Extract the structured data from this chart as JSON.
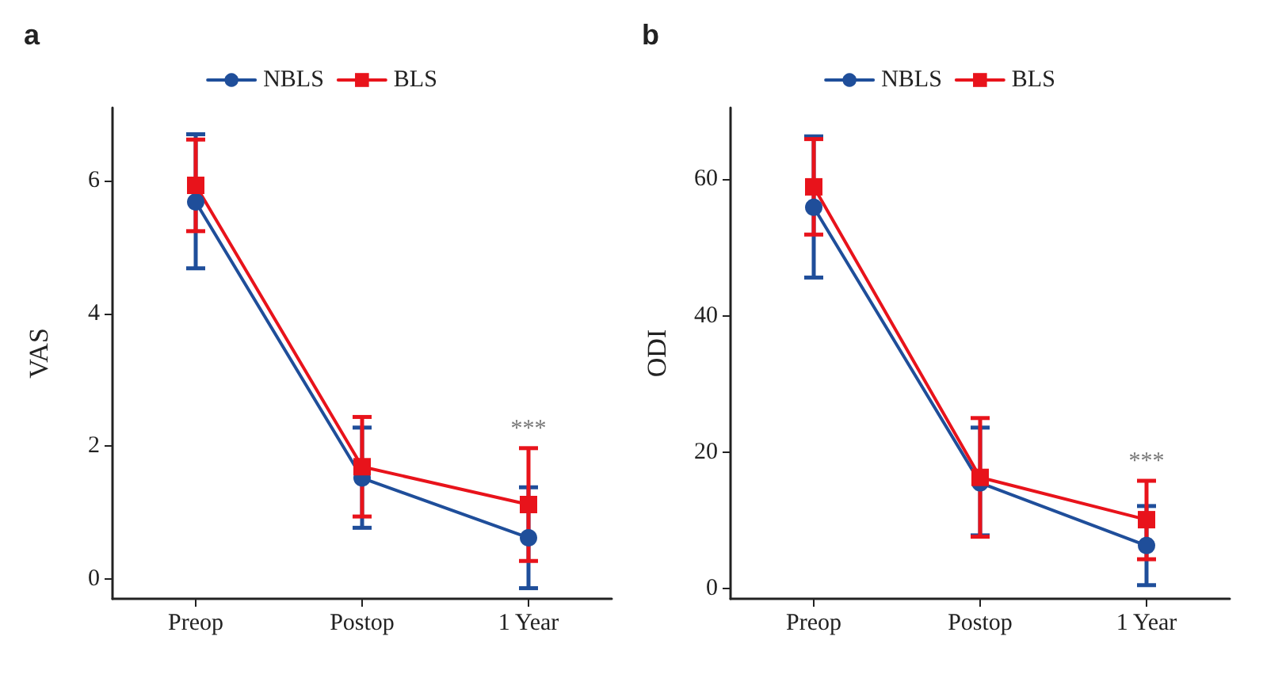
{
  "chart_data": [
    {
      "type": "line",
      "title": "a",
      "ylabel": "VAS",
      "categories": [
        "Preop",
        "Postop",
        "1 Year"
      ],
      "ylim": [
        -0.3,
        7.1
      ],
      "yticks": [
        0,
        2,
        4,
        6
      ],
      "grid": false,
      "legend": "top",
      "line_style": "solid",
      "annotations": [
        "***"
      ],
      "series": [
        {
          "name": "NBLS",
          "color": "#1f4e9a",
          "marker": "circle",
          "values": [
            5.68,
            1.52,
            0.62
          ],
          "errors": [
            [
              4.68,
              6.7
            ],
            [
              0.77,
              2.28
            ],
            [
              -0.14,
              1.38
            ]
          ]
        },
        {
          "name": "BLS",
          "color": "#e8131b",
          "marker": "square",
          "values": [
            5.93,
            1.69,
            1.12
          ],
          "errors": [
            [
              5.24,
              6.62
            ],
            [
              0.94,
              2.44
            ],
            [
              0.27,
              1.97
            ]
          ]
        }
      ]
    },
    {
      "type": "line",
      "title": "b",
      "ylabel": "ODI",
      "categories": [
        "Preop",
        "Postop",
        "1 Year"
      ],
      "ylim": [
        -1.5,
        70.5
      ],
      "yticks": [
        0,
        20,
        40,
        60
      ],
      "grid": false,
      "legend": "top",
      "line_style": "solid",
      "annotations": [
        "***"
      ],
      "series": [
        {
          "name": "NBLS",
          "color": "#1f4e9a",
          "marker": "circle",
          "values": [
            55.9,
            15.5,
            6.3
          ],
          "errors": [
            [
              45.6,
              66.3
            ],
            [
              7.8,
              23.6
            ],
            [
              0.5,
              12.1
            ]
          ]
        },
        {
          "name": "BLS",
          "color": "#e8131b",
          "marker": "square",
          "values": [
            58.9,
            16.3,
            10.1
          ],
          "errors": [
            [
              51.9,
              65.9
            ],
            [
              7.6,
              25.0
            ],
            [
              4.3,
              15.8
            ]
          ]
        }
      ]
    }
  ]
}
